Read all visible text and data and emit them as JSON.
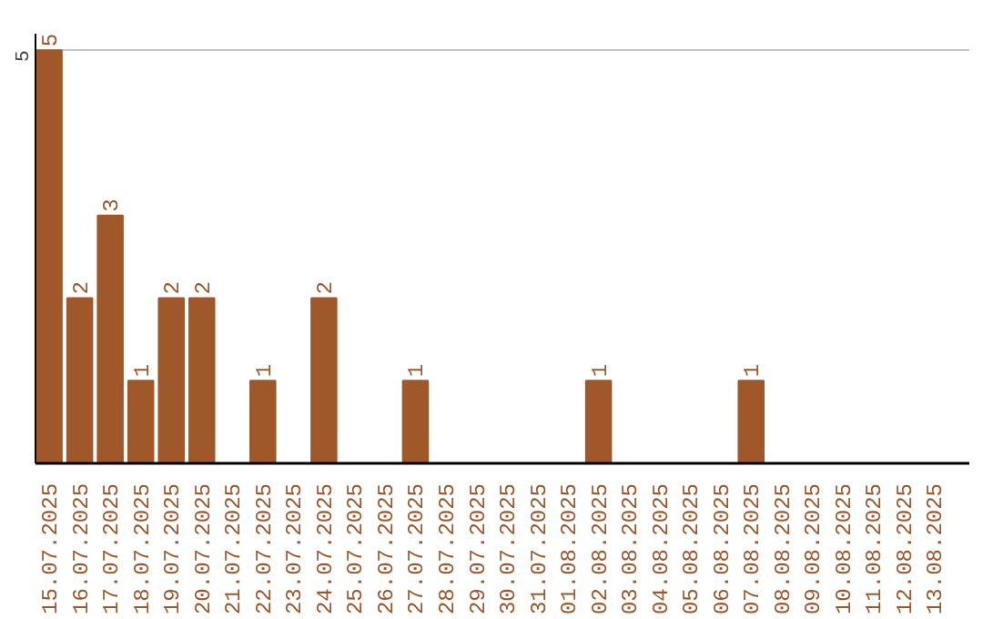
{
  "chart_data": {
    "type": "bar",
    "categories": [
      "15.07.2025",
      "16.07.2025",
      "17.07.2025",
      "18.07.2025",
      "19.07.2025",
      "20.07.2025",
      "21.07.2025",
      "22.07.2025",
      "23.07.2025",
      "24.07.2025",
      "25.07.2025",
      "26.07.2025",
      "27.07.2025",
      "28.07.2025",
      "29.07.2025",
      "30.07.2025",
      "31.07.2025",
      "01.08.2025",
      "02.08.2025",
      "03.08.2025",
      "04.08.2025",
      "05.08.2025",
      "06.08.2025",
      "07.08.2025",
      "08.08.2025",
      "09.08.2025",
      "10.08.2025",
      "11.08.2025",
      "12.08.2025",
      "13.08.2025"
    ],
    "values": [
      5,
      2,
      3,
      1,
      2,
      2,
      0,
      1,
      0,
      2,
      0,
      0,
      1,
      0,
      0,
      0,
      0,
      0,
      1,
      0,
      0,
      0,
      0,
      1,
      0,
      0,
      0,
      0,
      0,
      0
    ],
    "value_labels": [
      "5",
      "2",
      "3",
      "1",
      "2",
      "2",
      null,
      "1",
      null,
      "2",
      null,
      null,
      "1",
      null,
      null,
      null,
      null,
      null,
      "1",
      null,
      null,
      null,
      null,
      "1",
      null,
      null,
      null,
      null,
      null,
      null
    ],
    "color": "#a0572a",
    "ylim": [
      0,
      5.2
    ],
    "yticks": [
      5
    ],
    "grid": "y"
  }
}
